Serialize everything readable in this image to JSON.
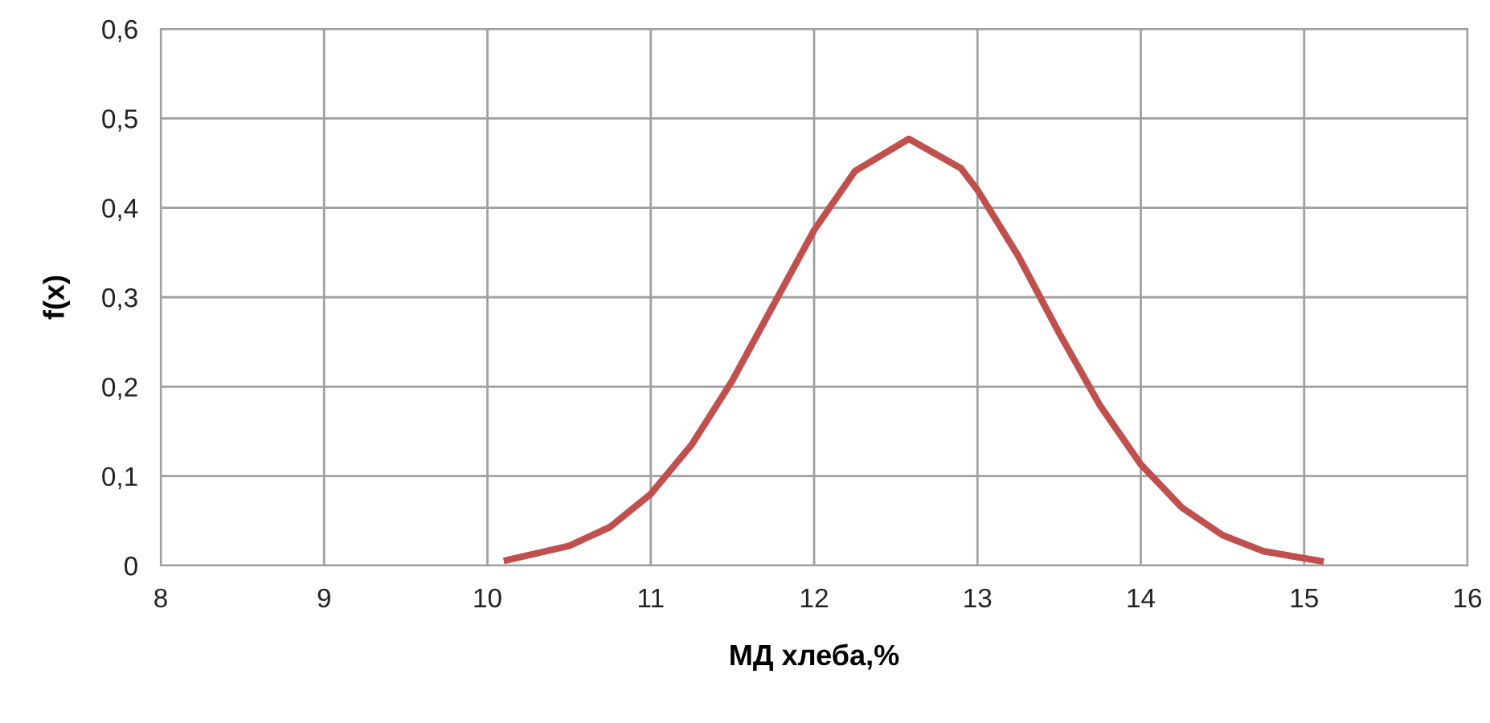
{
  "chart_data": {
    "type": "line",
    "xlabel": "МД хлеба,%",
    "ylabel": "f(x)",
    "series": [
      {
        "color": "#c0504d",
        "x": [
          10.12,
          10.5,
          10.75,
          11,
          11.25,
          11.5,
          11.75,
          12,
          12.25,
          12.58,
          12.9,
          13,
          13.25,
          13.5,
          13.75,
          14,
          14.25,
          14.5,
          14.75,
          15.1
        ],
        "values": [
          0.006,
          0.022,
          0.043,
          0.08,
          0.135,
          0.207,
          0.291,
          0.375,
          0.441,
          0.477,
          0.444,
          0.42,
          0.346,
          0.26,
          0.179,
          0.113,
          0.065,
          0.034,
          0.016,
          0.005
        ]
      }
    ],
    "xlim": [
      8,
      16
    ],
    "xticks": [
      8,
      9,
      10,
      11,
      12,
      13,
      14,
      15,
      16
    ],
    "ylim": [
      0,
      0.6
    ],
    "yticks": [
      {
        "value": 0,
        "label": "0"
      },
      {
        "value": 0.1,
        "label": "0,1"
      },
      {
        "value": 0.2,
        "label": "0,2"
      },
      {
        "value": 0.3,
        "label": "0,3"
      },
      {
        "value": 0.4,
        "label": "0,4"
      },
      {
        "value": 0.5,
        "label": "0,5"
      },
      {
        "value": 0.6,
        "label": "0,6"
      }
    ],
    "grid": true,
    "marker": "none",
    "line_style": "solid",
    "legend": false
  }
}
